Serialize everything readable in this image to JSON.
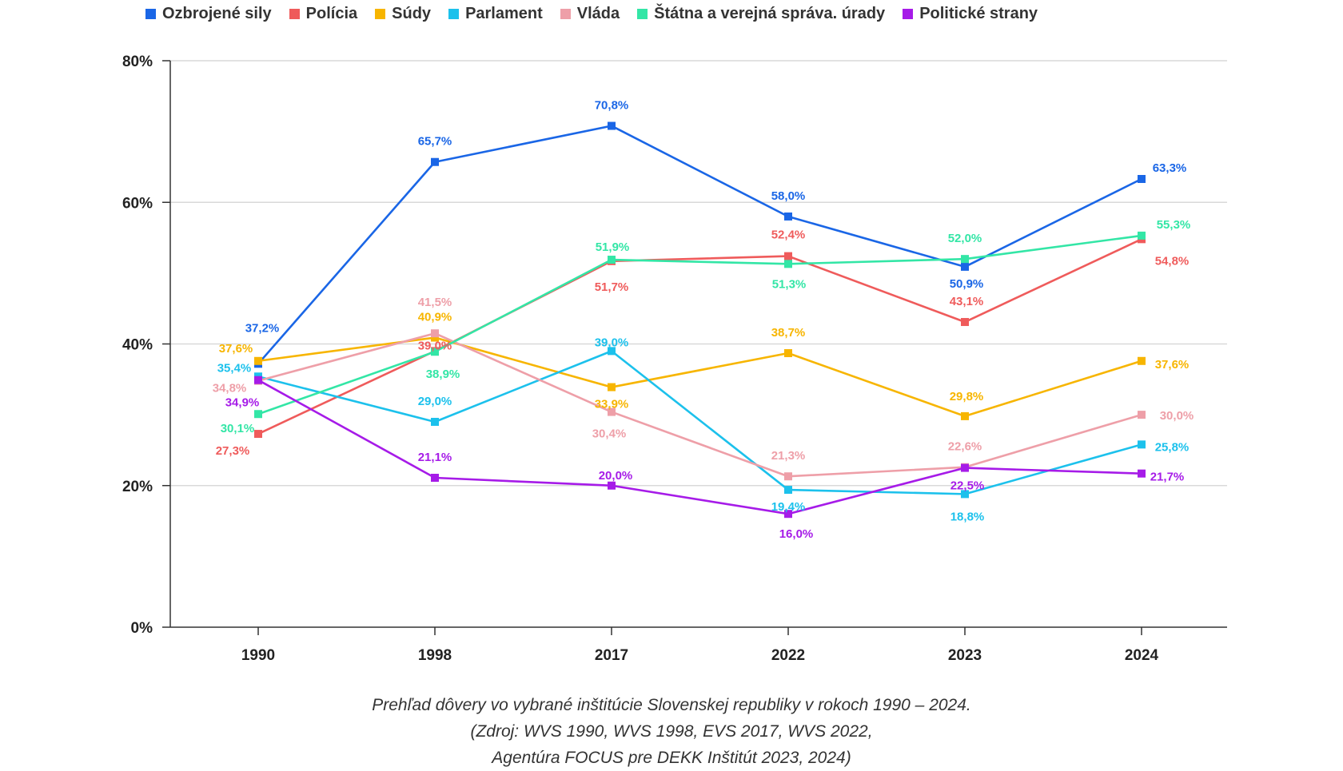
{
  "chart_data": {
    "type": "line",
    "categories": [
      "1990",
      "1998",
      "2017",
      "2022",
      "2023",
      "2024"
    ],
    "ylim": [
      0,
      80
    ],
    "yticks": [
      "0%",
      "20%",
      "40%",
      "60%",
      "80%"
    ],
    "ytick_values": [
      0,
      20,
      40,
      60,
      80
    ],
    "grid": true,
    "legend_position": "top",
    "series": [
      {
        "name": "Ozbrojené sily",
        "color": "#1a66e6",
        "values": [
          37.2,
          65.7,
          70.8,
          58.0,
          50.9,
          63.3
        ],
        "labels": [
          "37,2%",
          "65,7%",
          "70,8%",
          "58,0%",
          "50,9%",
          "63,3%"
        ]
      },
      {
        "name": "Polícia",
        "color": "#ef5b5b",
        "values": [
          27.3,
          39.0,
          51.7,
          52.4,
          43.1,
          54.8
        ],
        "labels": [
          "27,3%",
          "39,0%",
          "51,7%",
          "52,4%",
          "43,1%",
          "54,8%"
        ]
      },
      {
        "name": "Súdy",
        "color": "#f7b500",
        "values": [
          37.6,
          40.9,
          33.9,
          38.7,
          29.8,
          37.6
        ],
        "labels": [
          "37,6%",
          "40,9%",
          "33,9%",
          "38,7%",
          "29,8%",
          "37,6%"
        ]
      },
      {
        "name": "Parlament",
        "color": "#1cc1ec",
        "values": [
          35.4,
          29.0,
          39.0,
          19.4,
          18.8,
          25.8
        ],
        "labels": [
          "35,4%",
          "29,0%",
          "39,0%",
          "19,4%",
          "18,8%",
          "25,8%"
        ]
      },
      {
        "name": "Vláda",
        "color": "#ee9fa8",
        "values": [
          34.8,
          41.5,
          30.4,
          21.3,
          22.6,
          30.0
        ],
        "labels": [
          "34,8%",
          "41,5%",
          "30,4%",
          "21,3%",
          "22,6%",
          "30,0%"
        ]
      },
      {
        "name": "Štátna a verejná správa. úrady",
        "color": "#33e6a6",
        "values": [
          30.1,
          38.9,
          51.9,
          51.3,
          52.0,
          55.3
        ],
        "labels": [
          "30,1%",
          "38,9%",
          "51,9%",
          "51,3%",
          "52,0%",
          "55,3%"
        ]
      },
      {
        "name": "Politické strany",
        "color": "#a61be8",
        "values": [
          34.9,
          21.1,
          20.0,
          16.0,
          22.5,
          21.7
        ],
        "labels": [
          "34,9%",
          "21,1%",
          "20,0%",
          "16,0%",
          "22,5%",
          "21,7%"
        ]
      }
    ]
  },
  "caption": {
    "line1": "Prehľad dôvery vo vybrané inštitúcie Slovenskej republiky v rokoch 1990 – 2024.",
    "line2": "(Zdroj: WVS 1990, WVS 1998, EVS 2017, WVS 2022,",
    "line3": "Agentúra FOCUS pre DEKK Inštitút 2023, 2024)"
  }
}
